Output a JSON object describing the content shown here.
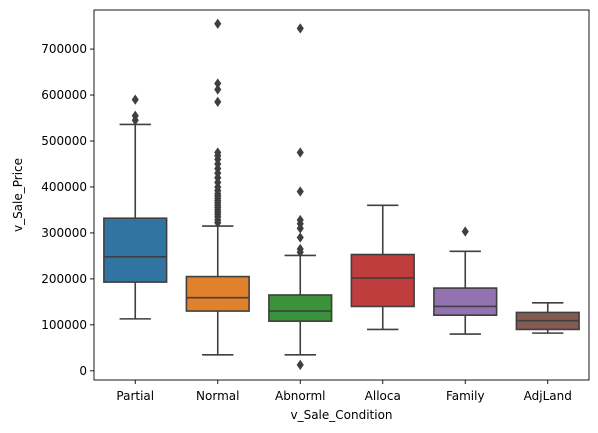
{
  "chart_data": {
    "type": "box",
    "xlabel": "v_Sale_Condition",
    "ylabel": "v_Sale_Price",
    "ylim": [
      -20000,
      785000
    ],
    "yticks": [
      0,
      100000,
      200000,
      300000,
      400000,
      500000,
      600000,
      700000
    ],
    "ytick_labels": [
      "0",
      "100000",
      "200000",
      "300000",
      "400000",
      "500000",
      "600000",
      "700000"
    ],
    "grid": false,
    "edge_color": "#3f3f3f",
    "categories": [
      "Partial",
      "Normal",
      "Abnorml",
      "Alloca",
      "Family",
      "AdjLand"
    ],
    "boxes": [
      {
        "label": "Partial",
        "color": "#3274a1",
        "whisker_low": 113000,
        "q1": 193000,
        "median": 248000,
        "q3": 332000,
        "whisker_high": 536000,
        "outliers": [
          545000,
          555000,
          590000
        ]
      },
      {
        "label": "Normal",
        "color": "#e1812c",
        "whisker_low": 34900,
        "q1": 130000,
        "median": 159000,
        "q3": 205000,
        "whisker_high": 315000,
        "outliers": [
          322000,
          328000,
          335000,
          340000,
          345000,
          350000,
          355000,
          360000,
          365000,
          370000,
          375000,
          380000,
          385000,
          392000,
          400000,
          410000,
          420000,
          430000,
          440000,
          450000,
          460000,
          468000,
          475000,
          585000,
          612000,
          625000,
          755000
        ]
      },
      {
        "label": "Abnorml",
        "color": "#3a923a",
        "whisker_low": 34900,
        "q1": 108000,
        "median": 130000,
        "q3": 165000,
        "whisker_high": 251000,
        "outliers": [
          12800,
          258000,
          265000,
          290000,
          310000,
          320000,
          328000,
          390000,
          475000,
          745000
        ]
      },
      {
        "label": "Alloca",
        "color": "#c03d3e",
        "whisker_low": 90000,
        "q1": 140000,
        "median": 202000,
        "q3": 253000,
        "whisker_high": 360000,
        "outliers": []
      },
      {
        "label": "Family",
        "color": "#9372b2",
        "whisker_low": 80000,
        "q1": 121000,
        "median": 140000,
        "q3": 180000,
        "whisker_high": 260000,
        "outliers": [
          303000
        ]
      },
      {
        "label": "AdjLand",
        "color": "#845b53",
        "whisker_low": 82000,
        "q1": 90000,
        "median": 109000,
        "q3": 127000,
        "whisker_high": 148000,
        "outliers": []
      }
    ]
  }
}
